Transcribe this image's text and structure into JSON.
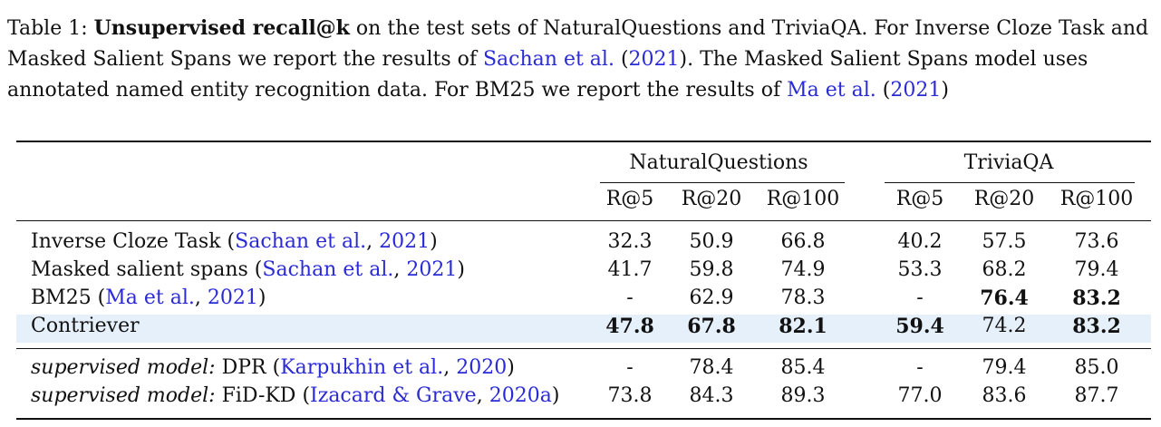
{
  "caption": {
    "prefix": "Table 1: ",
    "bold": "Unsupervised recall@k",
    "t1": " on the test sets of NaturalQuestions and TriviaQA. For Inverse Cloze Task and Masked Salient Spans we report the results of ",
    "cite1_name": "Sachan et al.",
    "cite1_open": " (",
    "cite1_year": "2021",
    "cite1_close": ")",
    "t2": ".  The Masked Salient Spans model uses annotated named entity recognition data.  For BM25 we report the results of ",
    "cite2_name": "Ma et al.",
    "cite2_open": " (",
    "cite2_year": "2021",
    "cite2_close": ")"
  },
  "table": {
    "groups": [
      "NaturalQuestions",
      "TriviaQA"
    ],
    "columns": [
      "R@5",
      "R@20",
      "R@100",
      "R@5",
      "R@20",
      "R@100"
    ],
    "rows": [
      {
        "method": "Inverse Cloze Task",
        "cite_name": "Sachan et al.",
        "cite_year": "2021",
        "values": [
          "32.3",
          "50.9",
          "66.8",
          "40.2",
          "57.5",
          "73.6"
        ]
      },
      {
        "method": "Masked salient spans",
        "cite_name": "Sachan et al.",
        "cite_year": "2021",
        "values": [
          "41.7",
          "59.8",
          "74.9",
          "53.3",
          "68.2",
          "79.4"
        ]
      },
      {
        "method": "BM25",
        "cite_name": "Ma et al.",
        "cite_year": "2021",
        "values": [
          "-",
          "62.9",
          "78.3",
          "-",
          "76.4",
          "83.2"
        ]
      },
      {
        "method": "Contriever",
        "values": [
          "47.8",
          "67.8",
          "82.1",
          "59.4",
          "74.2",
          "83.2"
        ]
      },
      {
        "prefix": "supervised model:",
        "method": "DPR",
        "cite_name": "Karpukhin et al.",
        "cite_year": "2020",
        "values": [
          "-",
          "78.4",
          "85.4",
          "-",
          "79.4",
          "85.0"
        ]
      },
      {
        "prefix": "supervised model:",
        "method": "FiD-KD",
        "cite_name": "Izacard & Grave",
        "cite_year": "2020a",
        "values": [
          "73.8",
          "84.3",
          "89.3",
          "77.0",
          "83.6",
          "87.7"
        ]
      }
    ]
  }
}
